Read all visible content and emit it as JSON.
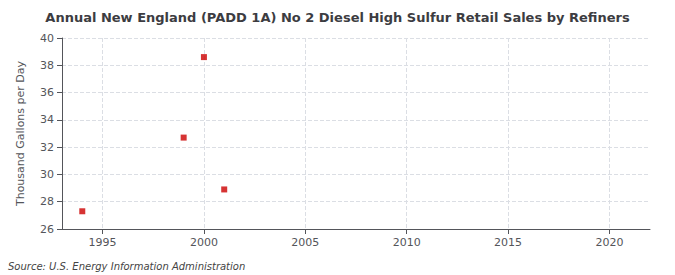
{
  "chart_data": {
    "type": "scatter",
    "title": "Annual New England (PADD 1A) No 2 Diesel High Sulfur Retail Sales by Refiners",
    "ylabel": "Thousand Gallons per Day",
    "source": "Source: U.S. Energy Information Administration",
    "x": [
      1994,
      1999,
      2000,
      2001
    ],
    "values": [
      27.3,
      32.7,
      38.6,
      28.9
    ],
    "color": "#cc0000",
    "marker": "square",
    "xlim": [
      1993,
      2022
    ],
    "xticks": [
      1995,
      2000,
      2005,
      2010,
      2015,
      2020
    ],
    "ylim": [
      26,
      40
    ],
    "yticks": [
      26,
      28,
      30,
      32,
      34,
      36,
      38,
      40
    ],
    "grid": true
  }
}
